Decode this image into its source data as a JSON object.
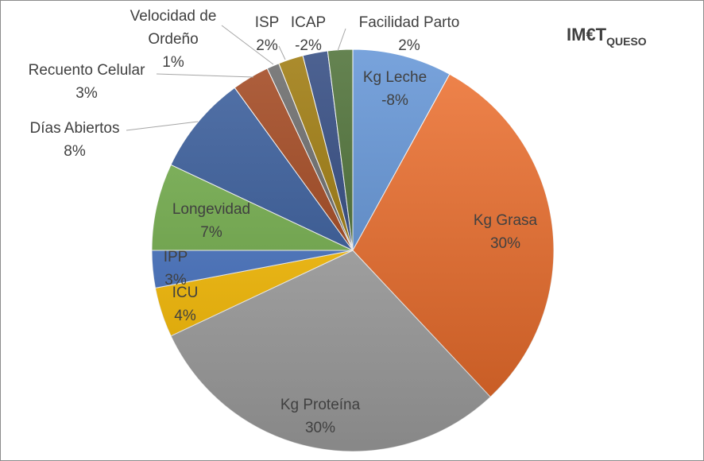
{
  "chart_data": {
    "type": "pie",
    "title": "IM€T",
    "title_subscript": "QUESO",
    "start": "12 o'clock",
    "direction": "clockwise",
    "legend": "none",
    "slices": [
      {
        "name": "Kg Leche",
        "value_label": "-8%",
        "share": 8,
        "color": "#5b8fd4"
      },
      {
        "name": "Kg Grasa",
        "value_label": "30%",
        "share": 30,
        "color": "#ed6a26"
      },
      {
        "name": "Kg Proteína",
        "value_label": "30%",
        "share": 30,
        "color": "#a5a5a5"
      },
      {
        "name": "ICU",
        "value_label": "4%",
        "share": 4,
        "color": "#ffc000"
      },
      {
        "name": "IPP",
        "value_label": "3%",
        "share": 3,
        "color": "#4472c4"
      },
      {
        "name": "Longevidad",
        "value_label": "7%",
        "share": 7,
        "color": "#70ad47"
      },
      {
        "name": "Días Abiertos",
        "value_label": "8%",
        "share": 8,
        "color": "#2f5597"
      },
      {
        "name": "Recuento Celular",
        "value_label": "3%",
        "share": 3,
        "color": "#9e3e14"
      },
      {
        "name": "Velocidad de Ordeño",
        "value_label": "1%",
        "share": 1,
        "color": "#636363"
      },
      {
        "name": "ISP",
        "value_label": "2%",
        "share": 2,
        "color": "#997300"
      },
      {
        "name": "ICAP",
        "value_label": "-2%",
        "share": 2,
        "color": "#26407a"
      },
      {
        "name": "Facilidad Parto",
        "value_label": "2%",
        "share": 2,
        "color": "#43682b"
      }
    ]
  }
}
